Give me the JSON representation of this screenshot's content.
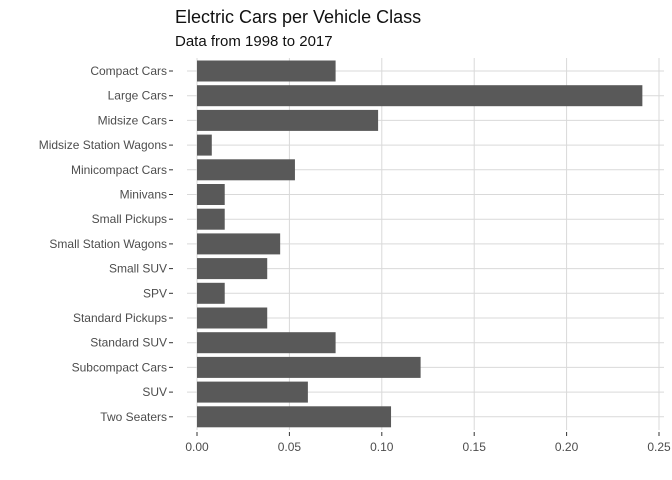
{
  "chart_data": {
    "type": "bar",
    "orientation": "horizontal",
    "title": "Electric Cars per Vehicle Class",
    "subtitle": "Data from 1998 to 2017",
    "xlabel": "",
    "ylabel": "",
    "categories": [
      "Compact Cars",
      "Large Cars",
      "Midsize Cars",
      "Midsize Station Wagons",
      "Minicompact Cars",
      "Minivans",
      "Small Pickups",
      "Small Station Wagons",
      "Small SUV",
      "SPV",
      "Standard Pickups",
      "Standard SUV",
      "Subcompact Cars",
      "SUV",
      "Two Seaters"
    ],
    "values": [
      0.075,
      0.241,
      0.098,
      0.008,
      0.053,
      0.015,
      0.015,
      0.045,
      0.038,
      0.015,
      0.038,
      0.075,
      0.121,
      0.06,
      0.105
    ],
    "xlim": [
      0,
      0.25
    ],
    "x_ticks": [
      "0.00",
      "0.05",
      "0.10",
      "0.15",
      "0.20",
      "0.25"
    ],
    "x_tick_values": [
      0,
      0.05,
      0.1,
      0.15,
      0.2,
      0.25
    ],
    "grid": true,
    "legend": "none",
    "colors": {
      "bar": "#595959",
      "grid": "#d9d9d9",
      "tick_text": "#4d4d4d"
    }
  }
}
